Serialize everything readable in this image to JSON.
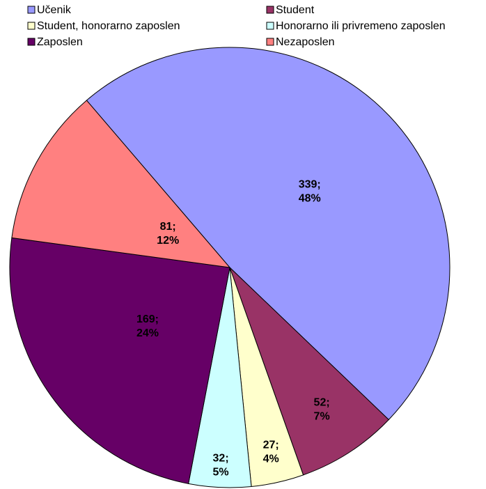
{
  "chart_data": {
    "type": "pie",
    "categories": [
      "Učenik",
      "Student",
      "Student, honorarno zaposlen",
      "Honorarno ili privremeno zaposlen",
      "Zaposlen",
      "Nezaposlen"
    ],
    "values": [
      339,
      52,
      27,
      32,
      169,
      81
    ],
    "value_labels": [
      [
        "339;",
        "48%"
      ],
      [
        "52;",
        "7%"
      ],
      [
        "27;",
        "4%"
      ],
      [
        "32;",
        "5%"
      ],
      [
        "169;",
        "24%"
      ],
      [
        "81;",
        "12%"
      ]
    ],
    "colors": [
      "#9999ff",
      "#993366",
      "#ffffcc",
      "#ccffff",
      "#660066",
      "#ff8080"
    ],
    "legend": "top"
  }
}
